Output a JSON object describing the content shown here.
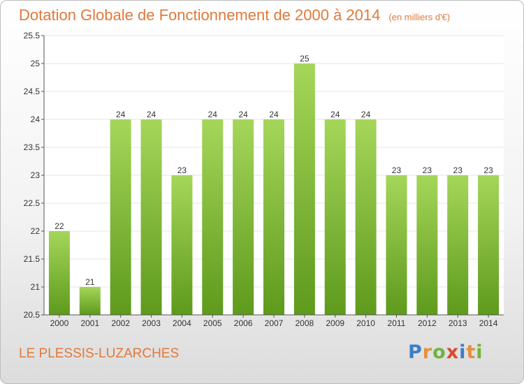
{
  "header": {
    "title": "Dotation Globale de Fonctionnement de 2000 à 2014",
    "unit_note": "(en milliers d'€)"
  },
  "footer": {
    "commune": "LE PLESSIS-LUZARCHES",
    "logo": {
      "letters": [
        "P",
        "r",
        "o",
        "x",
        "i",
        "t",
        "i"
      ],
      "colors": [
        "#3b7ec9",
        "#e6903a",
        "#6fb33d",
        "#d84a2a",
        "#3b7ec9",
        "#e6903a",
        "#6fb33d"
      ]
    }
  },
  "chart_data": {
    "type": "bar",
    "categories": [
      "2000",
      "2001",
      "2002",
      "2003",
      "2004",
      "2005",
      "2006",
      "2007",
      "2008",
      "2009",
      "2010",
      "2011",
      "2012",
      "2013",
      "2014"
    ],
    "values": [
      22,
      21,
      24,
      24,
      23,
      24,
      24,
      24,
      25,
      24,
      24,
      23,
      23,
      23,
      23
    ],
    "data_labels": [
      "22",
      "21",
      "24",
      "24",
      "23",
      "24",
      "24",
      "24",
      "25",
      "24",
      "24",
      "23",
      "23",
      "23",
      "23"
    ],
    "y_ticks": [
      "20.5",
      "21",
      "21.5",
      "22",
      "22.5",
      "23",
      "23.5",
      "24",
      "24.5",
      "25",
      "25.5"
    ],
    "ylim": [
      20.5,
      25.5
    ],
    "grid": true,
    "colors": {
      "bar_top": "#a5d65a",
      "bar_bottom": "#5e9a1c",
      "grid": "#e4e4e4",
      "axis": "#555555",
      "text": "#333333"
    }
  }
}
